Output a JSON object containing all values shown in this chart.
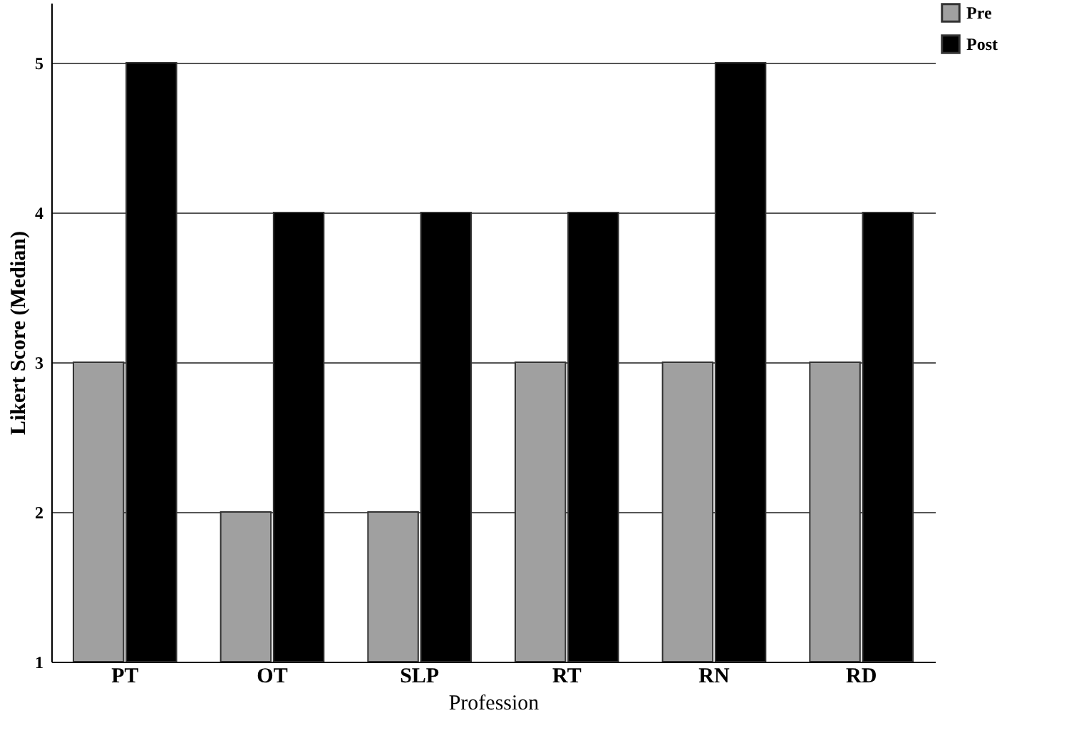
{
  "chart_data": {
    "type": "bar",
    "xlabel": "Profession",
    "ylabel": "Likert Score (Median)",
    "categories": [
      "PT",
      "OT",
      "SLP",
      "RT",
      "RN",
      "RD"
    ],
    "series": [
      {
        "name": "Pre",
        "color": "#a0a0a0",
        "values": [
          3,
          2,
          2,
          3,
          3,
          3
        ]
      },
      {
        "name": "Post",
        "color": "#000000",
        "values": [
          5,
          4,
          4,
          4,
          5,
          4
        ]
      }
    ],
    "ylim": [
      1,
      5.4
    ],
    "yticks": [
      1,
      2,
      3,
      4,
      5
    ],
    "grid": "y",
    "legend": "top right"
  }
}
